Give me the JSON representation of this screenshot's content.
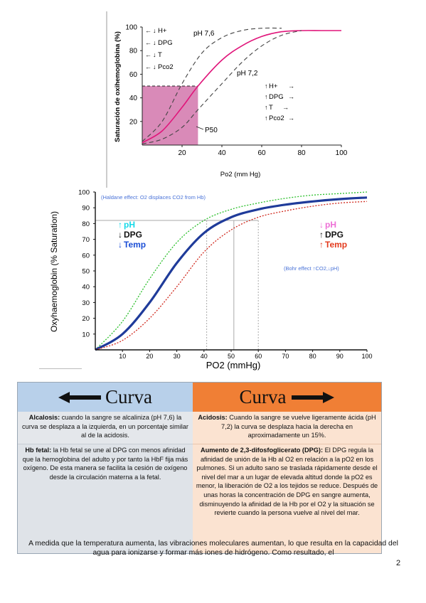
{
  "chart_data": [
    {
      "type": "line",
      "ylabel": "Saturación de oxihemoglobina (%)",
      "xlabel": "Po2 (mm Hg)",
      "xlim": [
        0,
        100
      ],
      "ylim": [
        0,
        100
      ],
      "x_ticks": [
        20,
        40,
        60,
        80,
        100
      ],
      "y_ticks": [
        20,
        40,
        60,
        80,
        100
      ],
      "series": [
        {
          "name": "pH 7,6",
          "style": "dashed",
          "color": "#444444",
          "x": [
            0,
            10,
            20,
            30,
            40,
            50,
            60,
            70
          ],
          "y": [
            3,
            20,
            52,
            78,
            91,
            97,
            99,
            99
          ]
        },
        {
          "name": "",
          "style": "solid",
          "color": "#e0157a",
          "x": [
            0,
            10,
            20,
            28,
            40,
            50,
            60,
            70,
            80,
            90,
            100
          ],
          "y": [
            2,
            12,
            32,
            50,
            72,
            84,
            92,
            96,
            97,
            97,
            97
          ]
        },
        {
          "name": "pH 7,2",
          "style": "dashed",
          "color": "#444444",
          "x": [
            0,
            10,
            20,
            28,
            40,
            50,
            60,
            70,
            80
          ],
          "y": [
            1,
            5,
            15,
            30,
            52,
            70,
            84,
            93,
            97
          ]
        }
      ],
      "reference": {
        "x": 28,
        "y": 50
      },
      "annotations": {
        "left_arrows": [
          "H+",
          "DPG",
          "T",
          "Pco2"
        ],
        "right_arrows": [
          "H+",
          "DPG",
          "T",
          "Pco2"
        ],
        "p50_label": "P50",
        "ph_high_label": "pH 7,6",
        "ph_low_label": "pH 7,2"
      },
      "colors": {
        "fill": "#d98ab8",
        "main": "#e0157a"
      }
    },
    {
      "type": "line",
      "ylabel": "Oxyhaemoglobin (% Saturation)",
      "xlabel": "PO2 (mmHg)",
      "xlim": [
        0,
        100
      ],
      "ylim": [
        0,
        100
      ],
      "x_ticks": [
        10,
        20,
        30,
        40,
        50,
        60,
        70,
        80,
        90,
        100
      ],
      "y_ticks": [
        10,
        20,
        30,
        40,
        50,
        60,
        70,
        80,
        90,
        100
      ],
      "series": [
        {
          "name": "",
          "style": "dotted",
          "color": "#2bbf2b",
          "x": [
            0,
            10,
            20,
            30,
            40,
            50,
            60,
            70,
            80,
            90,
            100
          ],
          "y": [
            0,
            18,
            45,
            68,
            82,
            89,
            93,
            96,
            98,
            99,
            100
          ]
        },
        {
          "name": "",
          "style": "solid",
          "color": "#1f3b9a",
          "x": [
            0,
            10,
            20,
            30,
            40,
            50,
            60,
            70,
            80,
            90,
            100
          ],
          "y": [
            0,
            10,
            30,
            55,
            74,
            84,
            89,
            92,
            94,
            95.5,
            96.5
          ]
        },
        {
          "name": "",
          "style": "dotted",
          "color": "#d0281d",
          "x": [
            0,
            10,
            20,
            30,
            40,
            50,
            60,
            70,
            80,
            90,
            100
          ],
          "y": [
            0,
            6,
            20,
            40,
            62,
            76,
            84,
            88,
            91,
            93,
            94
          ]
        }
      ],
      "reference_lines": {
        "y": 82,
        "x": [
          41,
          51,
          60
        ]
      },
      "annotations": {
        "haldane": "(Haldane effect: O2 displaces CO2 from Hb)",
        "bohr": "(Bohr effect ↑CO2,↓pH)",
        "left_legend": [
          {
            "text": "pH",
            "color": "#17d9e8",
            "arrow": "up"
          },
          {
            "text": "DPG",
            "color": "#111111",
            "arrow": "down"
          },
          {
            "text": "Temp",
            "color": "#1c4fd6",
            "arrow": "down"
          }
        ],
        "right_legend": [
          {
            "text": "pH",
            "color": "#ee6fd6",
            "arrow": "down"
          },
          {
            "text": "DPG",
            "color": "#111111",
            "arrow": "up"
          },
          {
            "text": "Temp",
            "color": "#e33a1d",
            "arrow": "up"
          }
        ]
      }
    }
  ],
  "table": {
    "left_header": "Curva",
    "right_header": "Curva",
    "alcalosis_title": "Alcalosis:",
    "alcalosis_text": " cuando la sangre se alcaliniza (pH 7,6) la curva se desplaza a la izquierda, en un porcentaje similar al de la acidosis.",
    "acidosis_title": "Acidosis:",
    "acidosis_text": " Cuando la sangre se vuelve ligeramente ácida (pH 7,2) la curva se desplaza hacia la derecha en aproximadamente un 15%.",
    "hbfetal_title": "Hb fetal:",
    "hbfetal_text": " la Hb fetal se une al DPG con menos afinidad que la hemoglobina del adulto y por tanto la HbF fija más oxígeno. De esta manera se facilita la cesión de oxígeno desde la circulación materna a la fetal.",
    "dpg_title": "Aumento de 2,3-difosfoglicerato (DPG):",
    "dpg_text": " El DPG regula la afinidad de unión de la Hb al O2 en relación a la pO2 en los pulmones. Si un adulto sano se traslada rápidamente desde el nivel del mar a un lugar de elevada altitud donde la pO2 es menor, la liberación de O2 a los tejidos se reduce. Después de unas horas la concentración de DPG en sangre aumenta, disminuyendo la afinidad de la Hb por el O2 y la situación se revierte cuando la persona vuelve al nivel del mar."
  },
  "overlay_text": "A medida que la temperatura aumenta, las vibraciones moleculares aumentan, lo que resulta en la capacidad del agua para ionizarse y formar más iones de hidrógeno. Como resultado, el",
  "page_number": "2"
}
